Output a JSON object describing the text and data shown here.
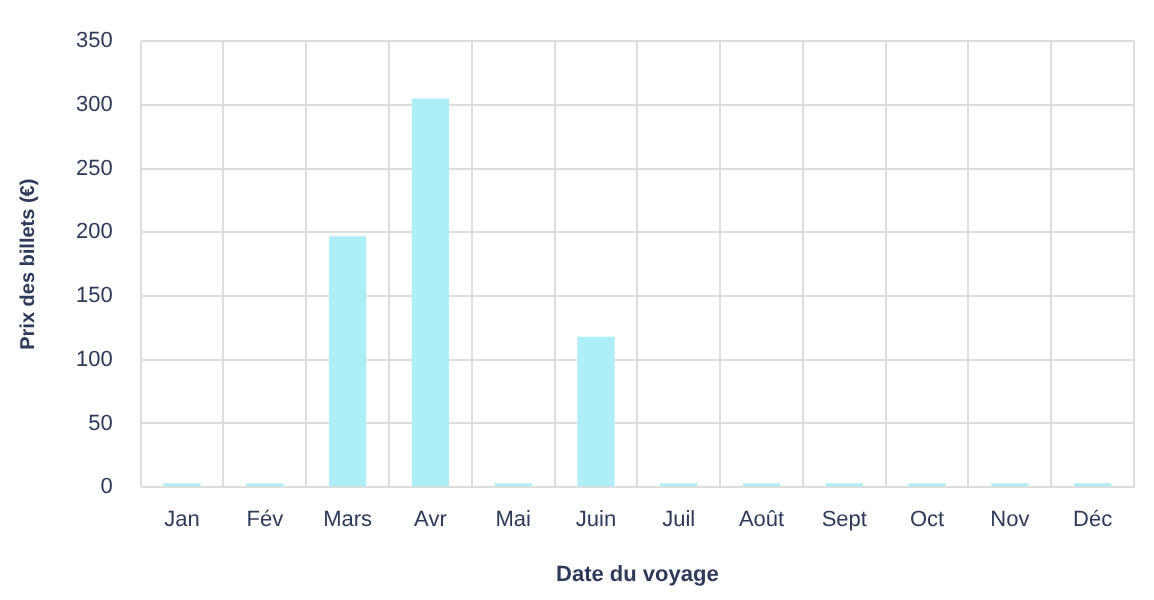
{
  "chart_data": {
    "type": "bar",
    "xlabel": "Date du voyage",
    "ylabel": "Prix des billets (€)",
    "categories": [
      "Jan",
      "Fév",
      "Mars",
      "Avr",
      "Mai",
      "Juin",
      "Juil",
      "Août",
      "Sept",
      "Oct",
      "Nov",
      "Déc"
    ],
    "values": [
      0,
      0,
      197,
      305,
      0,
      118,
      0,
      0,
      0,
      0,
      0,
      0
    ],
    "color": "#aeeef8",
    "ylim": [
      0,
      350
    ],
    "yticks": [
      0,
      50,
      100,
      150,
      200,
      250,
      300,
      350
    ],
    "grid": true,
    "legend": false
  }
}
